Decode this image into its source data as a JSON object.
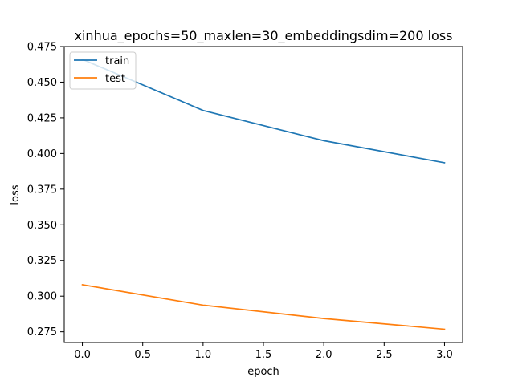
{
  "chart_data": {
    "type": "line",
    "title": "xinhua_epochs=50_maxlen=30_embeddingsdim=200 loss",
    "xlabel": "epoch",
    "ylabel": "loss",
    "x": [
      0,
      1,
      2,
      3
    ],
    "xlim": [
      -0.15,
      3.15
    ],
    "ylim": [
      0.2675,
      0.475
    ],
    "xticks": [
      0.0,
      0.5,
      1.0,
      1.5,
      2.0,
      2.5,
      3.0
    ],
    "xtick_labels": [
      "0.0",
      "0.5",
      "1.0",
      "1.5",
      "2.0",
      "2.5",
      "3.0"
    ],
    "yticks": [
      0.275,
      0.3,
      0.325,
      0.35,
      0.375,
      0.4,
      0.425,
      0.45,
      0.475
    ],
    "ytick_labels": [
      "0.275",
      "0.300",
      "0.325",
      "0.350",
      "0.375",
      "0.400",
      "0.425",
      "0.450",
      "0.475"
    ],
    "grid": false,
    "legend_position": "top-left",
    "series": [
      {
        "name": "train",
        "color": "#1f77b4",
        "values": [
          0.466,
          0.4302,
          0.409,
          0.3935
        ]
      },
      {
        "name": "test",
        "color": "#ff7f0e",
        "values": [
          0.308,
          0.2937,
          0.2843,
          0.2768
        ]
      }
    ]
  }
}
